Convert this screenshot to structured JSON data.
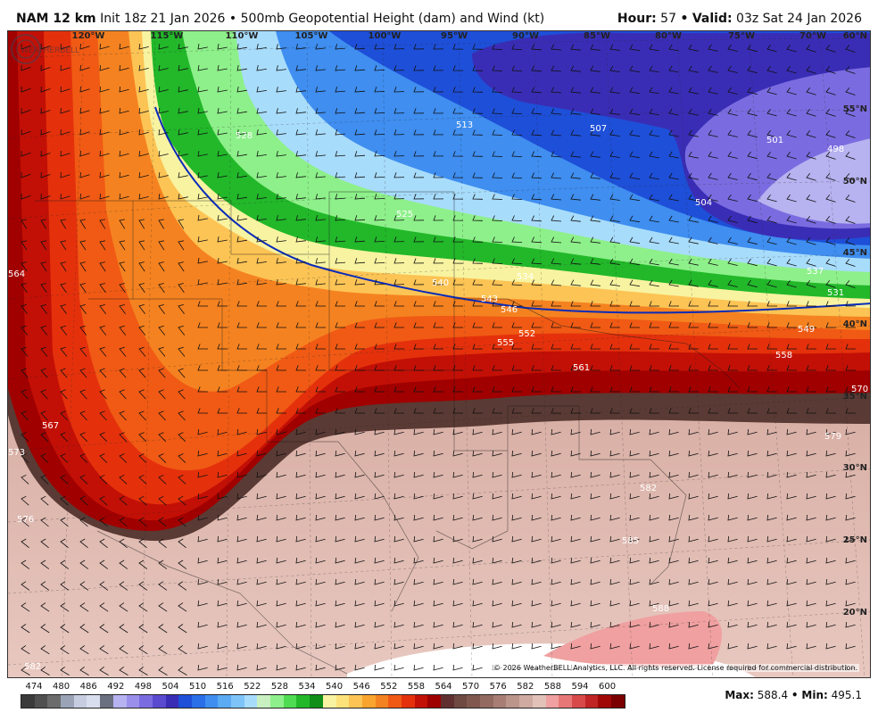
{
  "header": {
    "model": "NAM 12 km",
    "init": "Init 18z 21 Jan 2026",
    "separator": "•",
    "product": "500mb Geopotential Height (dam) and Wind (kt)",
    "hour_label": "Hour:",
    "hour_value": "57",
    "valid_label": "Valid:",
    "valid_value": "03z Sat 24 Jan 2026"
  },
  "longitudes": [
    "120°W",
    "115°W",
    "110°W",
    "105°W",
    "100°W",
    "95°W",
    "90°W",
    "85°W",
    "80°W",
    "75°W",
    "70°W"
  ],
  "latitudes": [
    "60°N",
    "55°N",
    "50°N",
    "45°N",
    "40°N",
    "35°N",
    "30°N",
    "25°N",
    "20°N"
  ],
  "contour_labels": [
    "564",
    "567",
    "573",
    "576",
    "582",
    "528",
    "525",
    "513",
    "507",
    "501",
    "498",
    "504",
    "540",
    "543",
    "546",
    "549",
    "552",
    "555",
    "558",
    "561",
    "570",
    "579",
    "582",
    "585",
    "588",
    "531",
    "534",
    "537"
  ],
  "colorbar": {
    "labels": [
      "474",
      "480",
      "486",
      "492",
      "498",
      "504",
      "510",
      "516",
      "522",
      "528",
      "534",
      "540",
      "546",
      "552",
      "558",
      "564",
      "570",
      "576",
      "582",
      "588",
      "594",
      "600"
    ],
    "colors": [
      "#3a3a3a",
      "#505050",
      "#6c6c6c",
      "#9aa4b6",
      "#c7cde0",
      "#d9deee",
      "#6b7080",
      "#b7b2f0",
      "#9a90ea",
      "#7a6ce0",
      "#5a4ad0",
      "#3a2db5",
      "#1e4fd8",
      "#2a6ee8",
      "#3f8ef0",
      "#5aaaf4",
      "#7fc4f8",
      "#a8dcfb",
      "#c8f0c0",
      "#8ef08a",
      "#4fdc52",
      "#22b82a",
      "#108e18",
      "#f8f3a0",
      "#fde27a",
      "#fcc455",
      "#f9a42e",
      "#f58220",
      "#f05a14",
      "#e4310c",
      "#c21006",
      "#9e0000",
      "#603030",
      "#6e4a42",
      "#80584e",
      "#936a60",
      "#a87e74",
      "#bb948a",
      "#cfaaa0",
      "#e2c2b8",
      "#f0a0a0",
      "#e87878",
      "#d84a4a",
      "#c02424",
      "#a00808",
      "#7a0000"
    ]
  },
  "stats": {
    "max_label": "Max:",
    "max_value": "588.4",
    "min_label": "Min:",
    "min_value": "495.1"
  },
  "copyright": "© 2026 WeatherBELL Analytics, LLC. All rights reserved. License required for commercial distribution.",
  "logo_text": "WEATHERBELL"
}
